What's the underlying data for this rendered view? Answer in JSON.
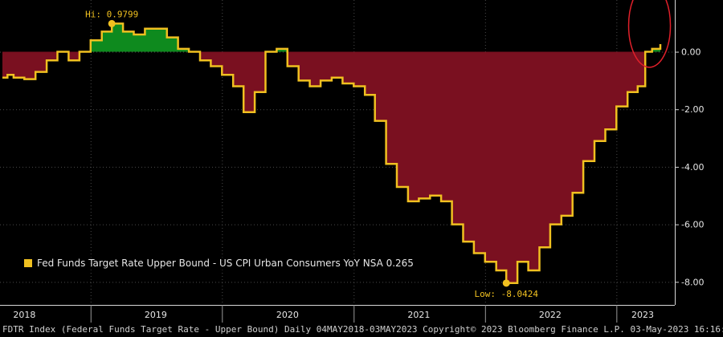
{
  "chart_data": {
    "type": "area",
    "title": "",
    "xlabel": "",
    "ylabel": "",
    "ylim": [
      -8.8,
      1.8
    ],
    "y_axis_side": "right",
    "grid": true,
    "legend_placement": "bottom-left",
    "y_ticks": [
      "0.00",
      "-2.00",
      "-4.00",
      "-6.00",
      "-8.00"
    ],
    "y_tick_values": [
      0,
      -2,
      -4,
      -6,
      -8
    ],
    "x_ticks": [
      "2018",
      "2019",
      "2020",
      "2021",
      "2022",
      "2023"
    ],
    "x_tick_dates": [
      "2018-07-01",
      "2019-07-01",
      "2020-07-01",
      "2021-07-01",
      "2022-07-01",
      "2023-03-15"
    ],
    "x_boundaries": [
      "2019-01-01",
      "2020-01-01",
      "2021-01-01",
      "2022-01-01",
      "2023-01-01"
    ],
    "series": [
      {
        "name": "Fed Funds Target Rate Upper Bound - US CPI Urban Consumers YoY NSA",
        "last_value": "0.265",
        "color": "#f0c020",
        "positive_fill": "#0e8a1e",
        "negative_fill": "#7a1020",
        "points": [
          [
            "2018-05-01",
            -0.9
          ],
          [
            "2018-05-15",
            -0.8
          ],
          [
            "2018-06-01",
            -0.9
          ],
          [
            "2018-07-01",
            -0.95
          ],
          [
            "2018-08-01",
            -0.7
          ],
          [
            "2018-09-01",
            -0.3
          ],
          [
            "2018-10-01",
            0.0
          ],
          [
            "2018-11-01",
            -0.3
          ],
          [
            "2018-12-01",
            0.0
          ],
          [
            "2019-01-01",
            0.4
          ],
          [
            "2019-02-01",
            0.7
          ],
          [
            "2019-03-01",
            0.98
          ],
          [
            "2019-04-01",
            0.7
          ],
          [
            "2019-05-01",
            0.6
          ],
          [
            "2019-06-01",
            0.8
          ],
          [
            "2019-07-01",
            0.8
          ],
          [
            "2019-08-01",
            0.5
          ],
          [
            "2019-09-01",
            0.1
          ],
          [
            "2019-10-01",
            0.0
          ],
          [
            "2019-11-01",
            -0.3
          ],
          [
            "2019-12-01",
            -0.5
          ],
          [
            "2020-01-01",
            -0.8
          ],
          [
            "2020-02-01",
            -1.2
          ],
          [
            "2020-03-01",
            -2.1
          ],
          [
            "2020-04-01",
            -1.4
          ],
          [
            "2020-05-01",
            0.0
          ],
          [
            "2020-06-01",
            0.1
          ],
          [
            "2020-07-01",
            -0.5
          ],
          [
            "2020-08-01",
            -1.0
          ],
          [
            "2020-09-01",
            -1.2
          ],
          [
            "2020-10-01",
            -1.0
          ],
          [
            "2020-11-01",
            -0.9
          ],
          [
            "2020-12-01",
            -1.1
          ],
          [
            "2021-01-01",
            -1.2
          ],
          [
            "2021-02-01",
            -1.5
          ],
          [
            "2021-03-01",
            -2.4
          ],
          [
            "2021-04-01",
            -3.9
          ],
          [
            "2021-05-01",
            -4.7
          ],
          [
            "2021-06-01",
            -5.2
          ],
          [
            "2021-07-01",
            -5.1
          ],
          [
            "2021-08-01",
            -5.0
          ],
          [
            "2021-09-01",
            -5.2
          ],
          [
            "2021-10-01",
            -6.0
          ],
          [
            "2021-11-01",
            -6.6
          ],
          [
            "2021-12-01",
            -7.0
          ],
          [
            "2022-01-01",
            -7.3
          ],
          [
            "2022-02-01",
            -7.6
          ],
          [
            "2022-03-01",
            -8.04
          ],
          [
            "2022-04-01",
            -7.3
          ],
          [
            "2022-05-01",
            -7.6
          ],
          [
            "2022-06-01",
            -6.8
          ],
          [
            "2022-07-01",
            -6.0
          ],
          [
            "2022-08-01",
            -5.7
          ],
          [
            "2022-09-01",
            -4.9
          ],
          [
            "2022-10-01",
            -3.8
          ],
          [
            "2022-11-01",
            -3.1
          ],
          [
            "2022-12-01",
            -2.7
          ],
          [
            "2023-01-01",
            -1.9
          ],
          [
            "2023-02-01",
            -1.4
          ],
          [
            "2023-03-01",
            -1.2
          ],
          [
            "2023-03-22",
            0.0
          ],
          [
            "2023-04-10",
            0.1
          ],
          [
            "2023-05-03",
            0.265
          ]
        ]
      }
    ],
    "annotations": [
      {
        "label": "Hi: 0.9799",
        "date": "2019-03-01",
        "value": 0.9799,
        "position": "above"
      },
      {
        "label": "Low: -8.0424",
        "date": "2022-03-01",
        "value": -8.0424,
        "position": "below"
      }
    ],
    "highlight": {
      "shape": "ellipse",
      "color": "#e0202a",
      "date": "2023-03-25",
      "value": 0.8
    }
  },
  "legend": {
    "label": "Fed Funds Target Rate Upper Bound - US CPI Urban Consumers YoY NSA 0.265"
  },
  "footer": {
    "text": "FDTR Index (Federal Funds Target Rate - Upper Bound)  Daily 04MAY2018-03MAY2023 Copyright© 2023 Bloomberg Finance L.P. 03-May-2023 16:16:35"
  }
}
